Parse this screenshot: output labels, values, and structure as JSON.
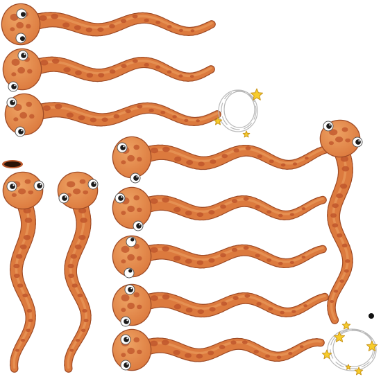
{
  "sheet": {
    "kind": "sprite-sheet",
    "subject": "orange-spotted-snake",
    "colors": {
      "body": "#dc7a3e",
      "body_light": "#eda263",
      "body_dark": "#b9572c",
      "spot": "#c0562c",
      "outline": "#9e4a25",
      "eye_white": "#ffffff",
      "pupil": "#1b1b1b",
      "star": "#f7cc2a",
      "star_outline": "#c9951a",
      "halo": "#b9b9b9"
    },
    "sprites": [
      {
        "name": "snake-sprite-1",
        "pose": "horizontal-right",
        "eyes": "closed-side"
      },
      {
        "name": "snake-sprite-2",
        "pose": "horizontal-right",
        "eyes": "open"
      },
      {
        "name": "snake-sprite-3",
        "pose": "horizontal-right",
        "eyes": "open"
      },
      {
        "name": "snake-sprite-4",
        "pose": "horizontal-right",
        "eyes": "open"
      },
      {
        "name": "snake-sprite-5",
        "pose": "horizontal-right",
        "eyes": "open"
      },
      {
        "name": "snake-sprite-6",
        "pose": "horizontal-right",
        "eyes": "rolled"
      },
      {
        "name": "snake-sprite-7",
        "pose": "horizontal-right",
        "eyes": "open"
      },
      {
        "name": "snake-sprite-8",
        "pose": "horizontal-right",
        "eyes": "open"
      },
      {
        "name": "snake-sprite-9",
        "pose": "vertical-down",
        "eyes": "open"
      },
      {
        "name": "snake-sprite-10",
        "pose": "vertical-down",
        "eyes": "open"
      },
      {
        "name": "snake-sprite-11",
        "pose": "vertical-down",
        "eyes": "open"
      }
    ],
    "effects": [
      {
        "name": "dizzy-stars-effect-1",
        "stars": 3
      },
      {
        "name": "dizzy-stars-effect-2",
        "stars": 6
      },
      {
        "name": "burrow-hole",
        "stars": 0
      }
    ]
  }
}
